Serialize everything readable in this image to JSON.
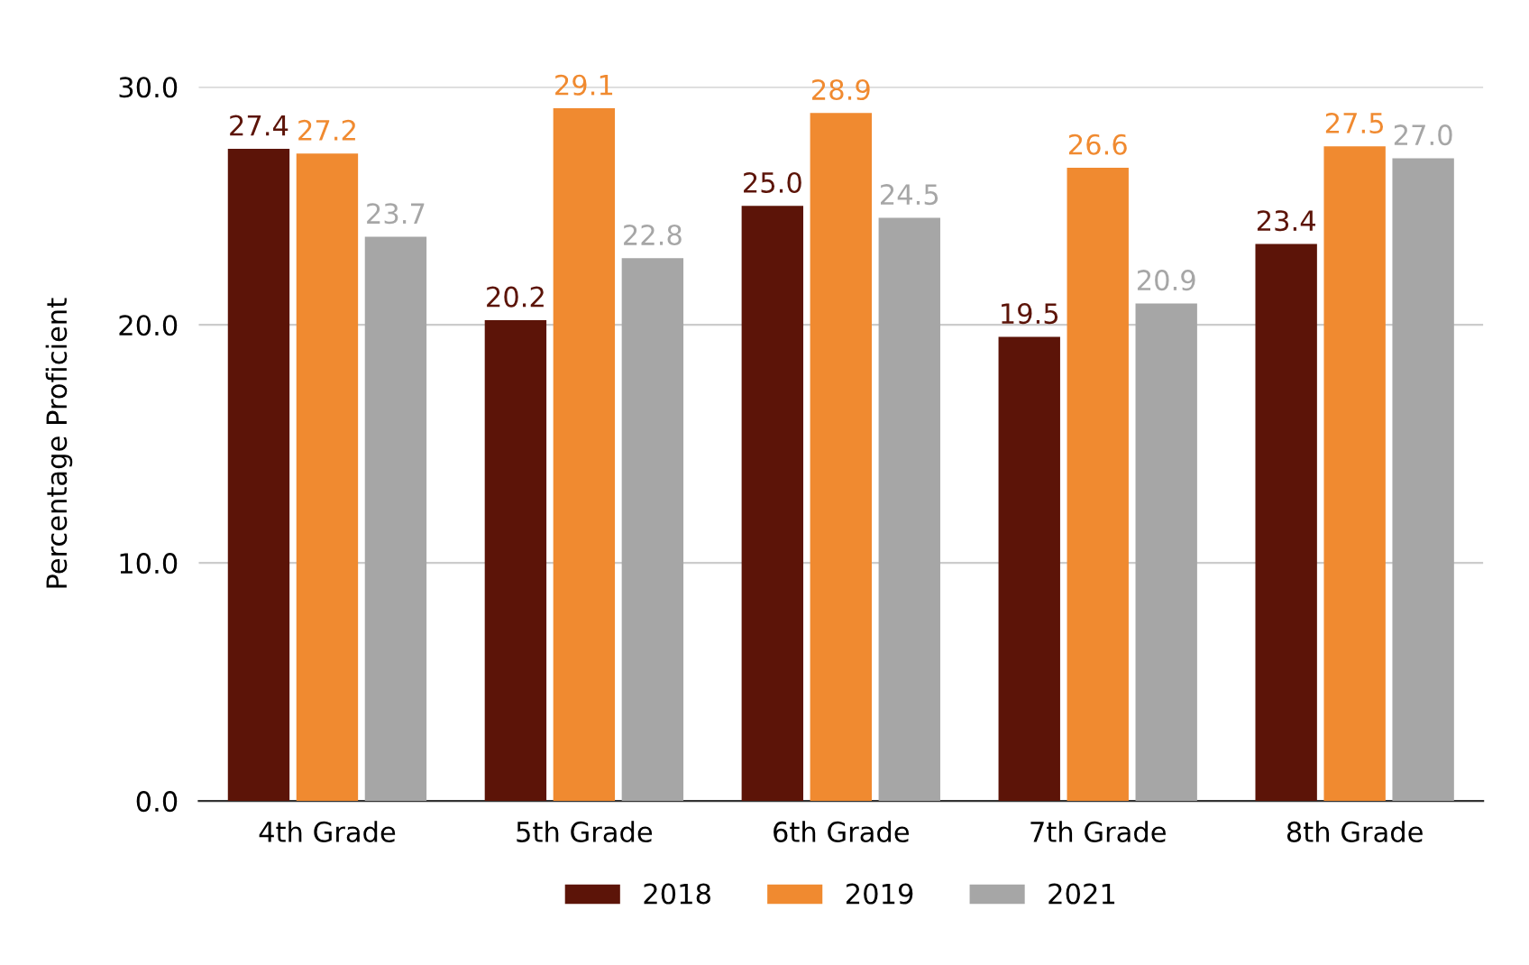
{
  "chart_data": {
    "type": "bar",
    "ylabel": "Percentage Proficient",
    "categories": [
      "4th Grade",
      "5th Grade",
      "6th Grade",
      "7th Grade",
      "8th Grade"
    ],
    "series": [
      {
        "name": "2018",
        "color": "#5c1408",
        "values": [
          27.4,
          20.2,
          25.0,
          19.5,
          23.4
        ],
        "value_labels": [
          "27.4",
          "20.2",
          "25.0",
          "19.5",
          "23.4"
        ]
      },
      {
        "name": "2019",
        "color": "#f08a30",
        "values": [
          27.2,
          29.1,
          28.9,
          26.6,
          27.5
        ],
        "value_labels": [
          "27.2",
          "29.1",
          "28.9",
          "26.6",
          "27.5"
        ]
      },
      {
        "name": "2021",
        "color": "#a6a6a6",
        "values": [
          23.7,
          22.8,
          24.5,
          20.9,
          27.0
        ],
        "value_labels": [
          "23.7",
          "22.8",
          "24.5",
          "20.9",
          "27.0"
        ]
      }
    ],
    "ylim": [
      0,
      30
    ],
    "yticks": [
      {
        "value": 0,
        "label": "0.0"
      },
      {
        "value": 10,
        "label": "10.0"
      },
      {
        "value": 20,
        "label": "20.0"
      },
      {
        "value": 30,
        "label": "30.0"
      }
    ],
    "grid": "y",
    "legend": "bottom"
  }
}
